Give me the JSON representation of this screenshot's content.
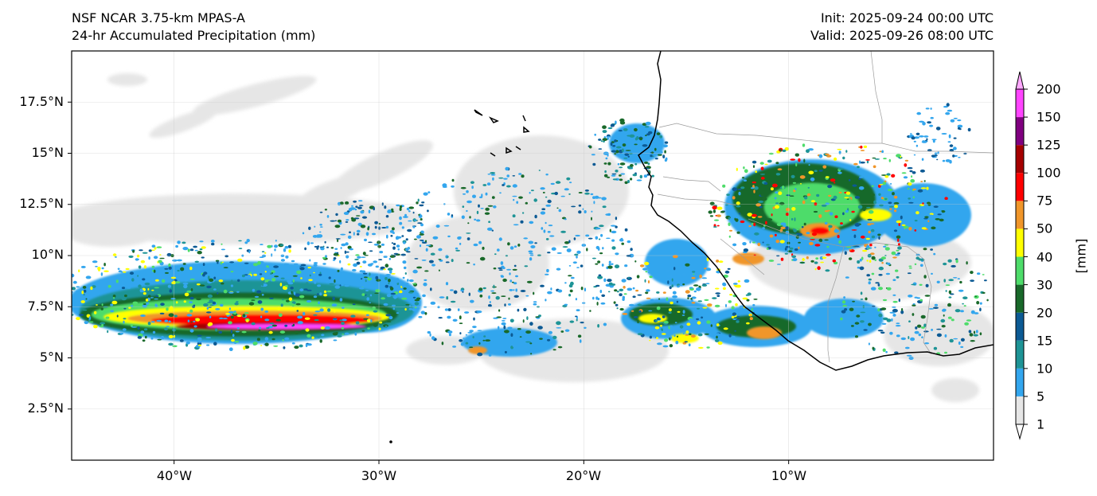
{
  "title": {
    "model": "NSF NCAR 3.75-km MPAS-A",
    "field": "24-hr Accumulated Precipitation (mm)",
    "init": "Init: 2025-09-24 00:00 UTC",
    "valid": "Valid: 2025-09-26 08:00 UTC"
  },
  "map": {
    "lat_range": [
      0,
      20
    ],
    "lon_range": [
      -45,
      0
    ],
    "gridlines": true,
    "lat_labels": [
      "17.5°N",
      "15°N",
      "12.5°N",
      "10°N",
      "7.5°N",
      "5°N",
      "2.5°N"
    ],
    "lon_labels": [
      "40°W",
      "30°W",
      "20°W",
      "10°W"
    ],
    "coastline_color": "#000000",
    "border_color": "#9a9a9a"
  },
  "colorbar": {
    "unit": "[mm]",
    "levels": [
      "1",
      "5",
      "10",
      "15",
      "20",
      "30",
      "40",
      "50",
      "75",
      "100",
      "125",
      "150",
      "200"
    ],
    "colors": [
      "#e6e6e6",
      "#33a6ee",
      "#1e9496",
      "#0c5a94",
      "#19692a",
      "#4edc6a",
      "#ffff00",
      "#f0962a",
      "#ff0000",
      "#a50000",
      "#800080",
      "#ff44ff",
      "#ffa8ff"
    ],
    "extend": "both"
  }
}
